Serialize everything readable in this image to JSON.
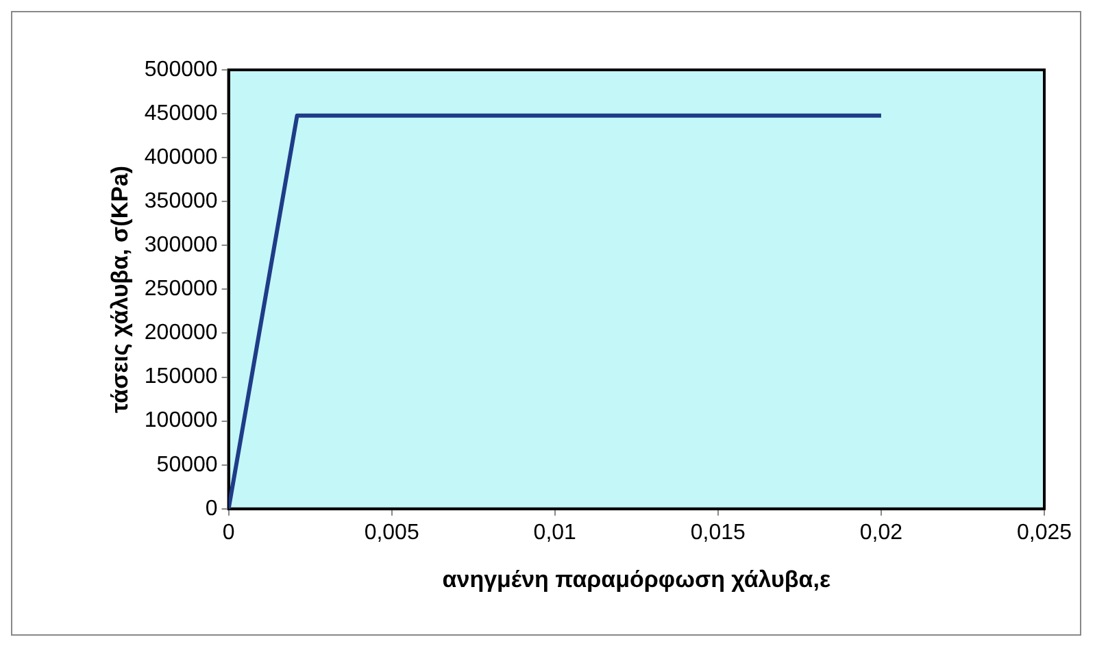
{
  "chart_data": {
    "type": "line",
    "xlabel": "ανηγμένη παραμόρφωση χάλυβα,ε",
    "ylabel": "τάσεις χάλυβα, σ(KPa)",
    "series": [
      {
        "color": "#1f3c88",
        "x": [
          0,
          0.0021,
          0.02
        ],
        "values": [
          0,
          448000,
          448000
        ]
      }
    ],
    "xlim": [
      0,
      0.025
    ],
    "xticks": [
      0,
      {
        "value": 0.005,
        "label": "0,005"
      },
      {
        "value": 0.01,
        "label": "0,01"
      },
      {
        "value": 0.015,
        "label": "0,015"
      },
      {
        "value": 0.02,
        "label": "0,02"
      },
      {
        "value": 0.025,
        "label": "0,025"
      }
    ],
    "ylim": [
      0,
      500000
    ],
    "yticks": [
      0,
      50000,
      100000,
      150000,
      200000,
      250000,
      300000,
      350000,
      400000,
      450000,
      500000
    ],
    "grid": false,
    "legend": false,
    "marker": "none",
    "line_style": "solid"
  }
}
